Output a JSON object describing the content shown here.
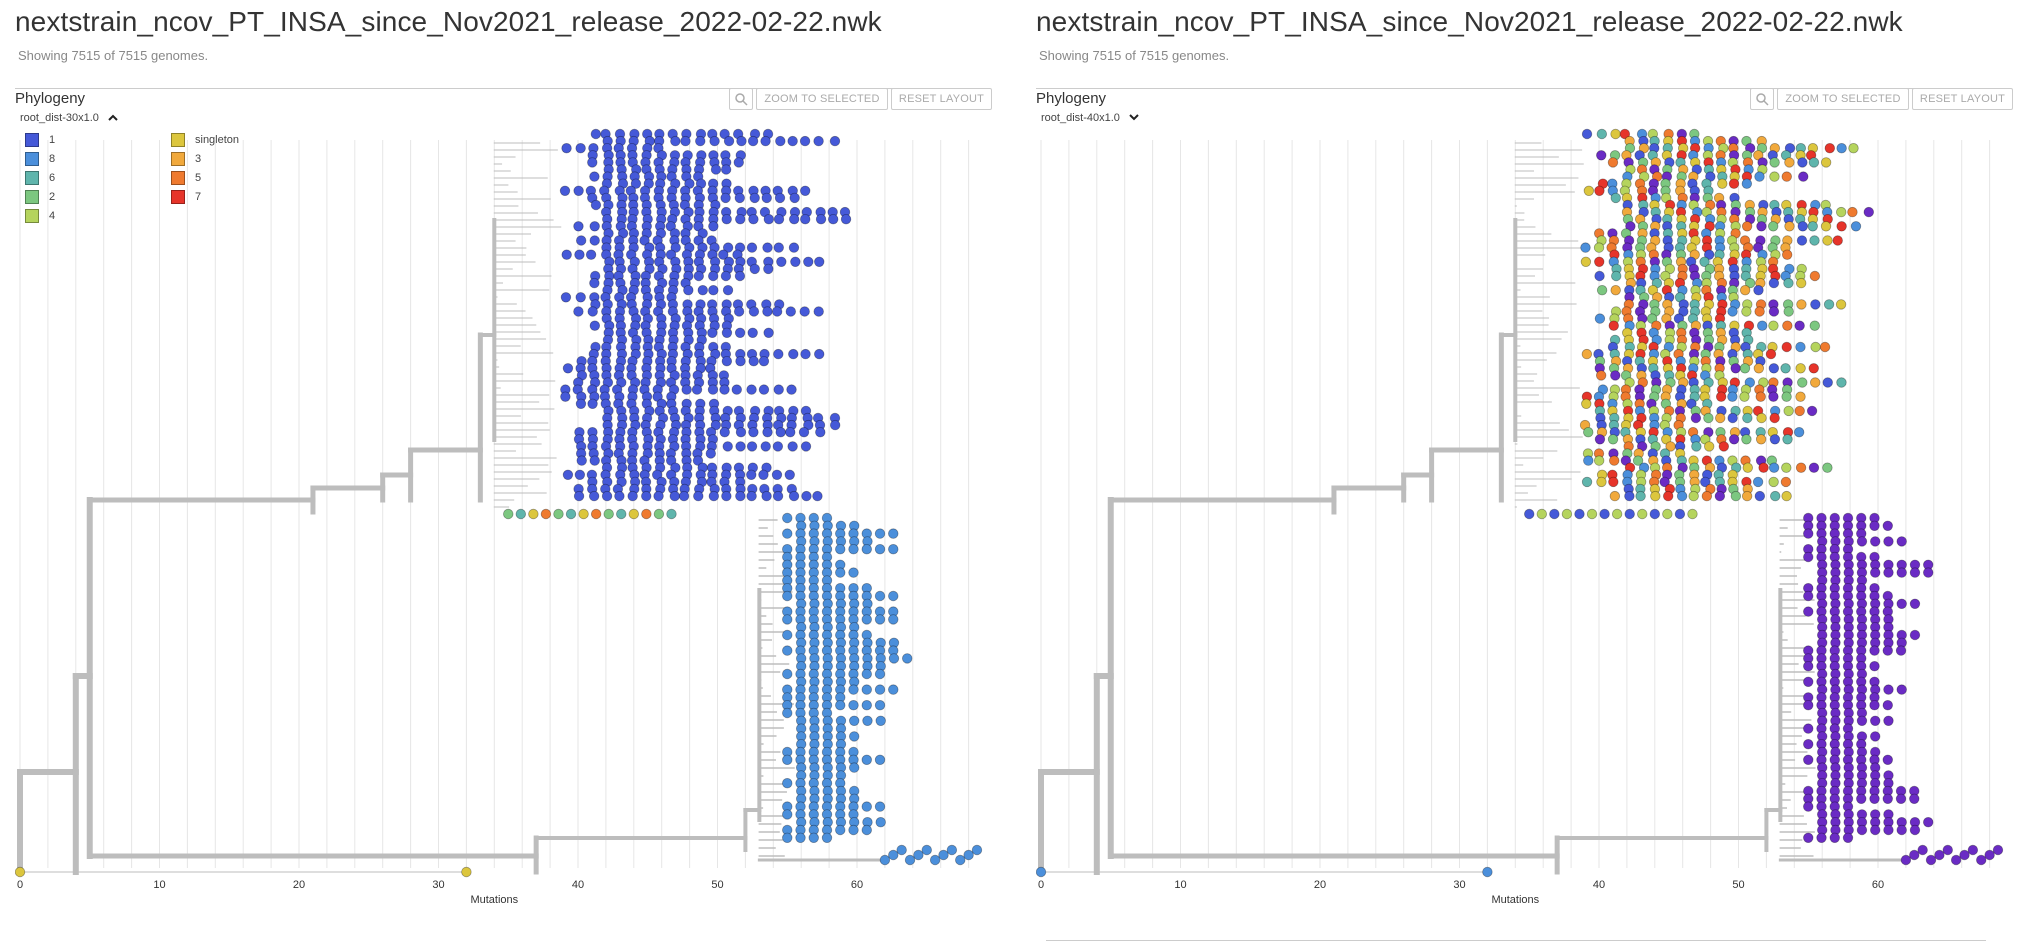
{
  "panels": [
    {
      "title": "nextstrain_ncov_PT_INSA_since_Nov2021_release_2022-02-22.nwk",
      "subtitle": "Showing 7515 of 7515 genomes.",
      "section_label": "Phylogeny",
      "layout_label": "root_dist-30x1.0",
      "layout_state": "expanded",
      "buttons": {
        "zoom_label": "ZOOM TO SELECTED",
        "reset_label": "RESET LAYOUT"
      },
      "legend": {
        "visible": true,
        "items": [
          {
            "label": "1",
            "color": "#4559d8"
          },
          {
            "label": "8",
            "color": "#4b8fdb"
          },
          {
            "label": "6",
            "color": "#5fb5ac"
          },
          {
            "label": "2",
            "color": "#7cc780"
          },
          {
            "label": "4",
            "color": "#b5d45d"
          },
          {
            "label": "singleton",
            "color": "#dcc63d"
          },
          {
            "label": "3",
            "color": "#f1a93c"
          },
          {
            "label": "5",
            "color": "#ef7a2f"
          },
          {
            "label": "7",
            "color": "#e6342a"
          }
        ]
      },
      "x_axis": {
        "label": "Mutations",
        "ticks": [
          "0",
          "10",
          "20",
          "30",
          "40",
          "50",
          "60"
        ],
        "range": [
          0,
          69
        ]
      }
    },
    {
      "title": "nextstrain_ncov_PT_INSA_since_Nov2021_release_2022-02-22.nwk",
      "subtitle": "Showing 7515 of 7515 genomes.",
      "section_label": "Phylogeny",
      "layout_label": "root_dist-40x1.0",
      "layout_state": "collapsed",
      "buttons": {
        "zoom_label": "ZOOM TO SELECTED",
        "reset_label": "RESET LAYOUT"
      },
      "legend": {
        "visible": false,
        "items": []
      },
      "x_axis": {
        "label": "Mutations",
        "ticks": [
          "0",
          "10",
          "20",
          "30",
          "40",
          "50",
          "60"
        ],
        "range": [
          0,
          69
        ]
      }
    }
  ],
  "colors": {
    "branch": "#bdbdbd",
    "cluster1": "#4559d8",
    "cluster8": "#4b8fdb",
    "purple": "#6a2bc4",
    "grid": "#e6e6e6"
  },
  "icons": {
    "search": "search-icon",
    "chevron_up": "chevron-up-icon",
    "chevron_down": "chevron-down-icon"
  }
}
